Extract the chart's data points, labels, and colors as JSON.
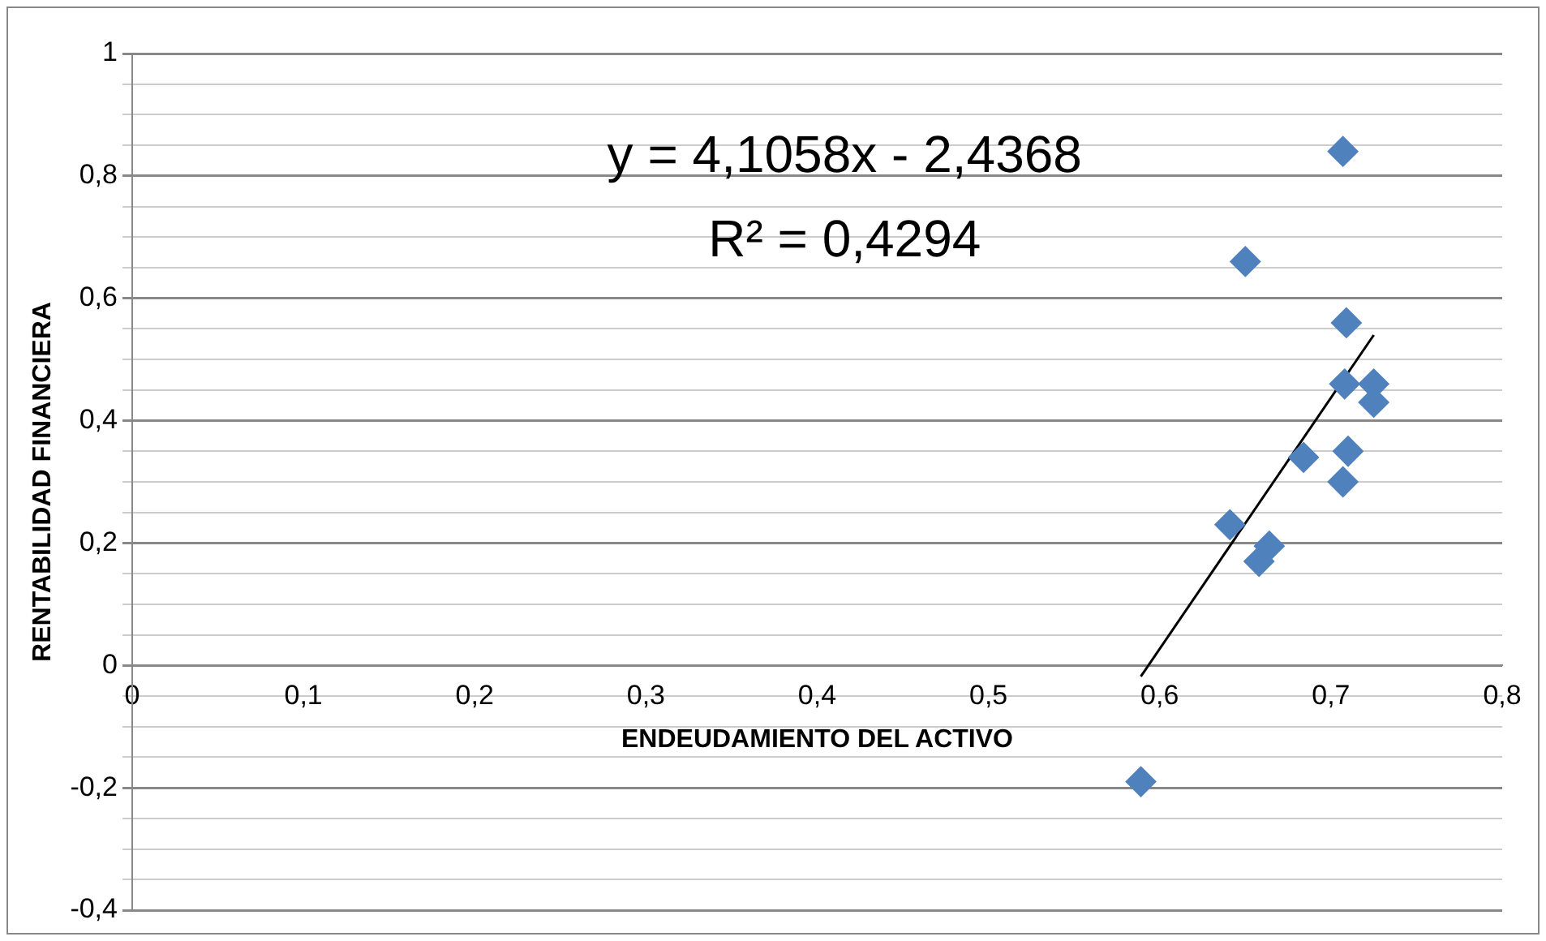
{
  "chart_data": {
    "type": "scatter",
    "xlabel": "ENDEUDAMIENTO DEL ACTIVO",
    "ylabel": "RENTABILIDAD FINANCIERA",
    "annotations": [
      "y = 4,1058x - 2,4368",
      "R² = 0,4294"
    ],
    "series": [
      {
        "color": "#4f81bd",
        "marker": "diamond",
        "x": [
          0.707,
          0.65,
          0.709,
          0.708,
          0.725,
          0.725,
          0.684,
          0.71,
          0.707,
          0.641,
          0.664,
          0.658,
          0.589
        ],
        "values": [
          0.84,
          0.66,
          0.56,
          0.46,
          0.46,
          0.43,
          0.34,
          0.35,
          0.3,
          0.23,
          0.195,
          0.17,
          -0.19
        ]
      },
      {
        "type": "line",
        "color": "#000000",
        "marker": "none",
        "x": [
          0.589,
          0.725
        ],
        "values": [
          -0.018,
          0.54
        ]
      }
    ],
    "xlim": [
      0,
      0.8
    ],
    "xticks": [
      0,
      {
        "value": 0.1,
        "label": "0,1"
      },
      {
        "value": 0.2,
        "label": "0,2"
      },
      {
        "value": 0.3,
        "label": "0,3"
      },
      {
        "value": 0.4,
        "label": "0,4"
      },
      {
        "value": 0.5,
        "label": "0,5"
      },
      {
        "value": 0.6,
        "label": "0,6"
      },
      {
        "value": 0.7,
        "label": "0,7"
      },
      {
        "value": 0.8,
        "label": "0,8"
      }
    ],
    "ylim": [
      -0.4,
      1
    ],
    "yticks": [
      {
        "value": -0.4,
        "label": "-0,4"
      },
      {
        "value": -0.35,
        "label": null
      },
      {
        "value": -0.3,
        "label": null
      },
      {
        "value": -0.25,
        "label": null
      },
      {
        "value": -0.2,
        "label": "-0,2"
      },
      {
        "value": -0.15,
        "label": null
      },
      {
        "value": -0.1,
        "label": null
      },
      {
        "value": -0.05,
        "label": null
      },
      0,
      {
        "value": 0.05,
        "label": null
      },
      {
        "value": 0.1,
        "label": null
      },
      {
        "value": 0.15,
        "label": null
      },
      {
        "value": 0.2,
        "label": "0,2"
      },
      {
        "value": 0.25,
        "label": null
      },
      {
        "value": 0.3,
        "label": null
      },
      {
        "value": 0.35,
        "label": null
      },
      {
        "value": 0.4,
        "label": "0,4"
      },
      {
        "value": 0.45,
        "label": null
      },
      {
        "value": 0.5,
        "label": null
      },
      {
        "value": 0.55,
        "label": null
      },
      {
        "value": 0.6,
        "label": "0,6"
      },
      {
        "value": 0.65,
        "label": null
      },
      {
        "value": 0.7,
        "label": null
      },
      {
        "value": 0.75,
        "label": null
      },
      {
        "value": 0.8,
        "label": "0,8"
      },
      {
        "value": 0.85,
        "label": null
      },
      {
        "value": 0.9,
        "label": null
      },
      {
        "value": 0.95,
        "label": null
      },
      1
    ],
    "grid": "y",
    "legend": false
  }
}
